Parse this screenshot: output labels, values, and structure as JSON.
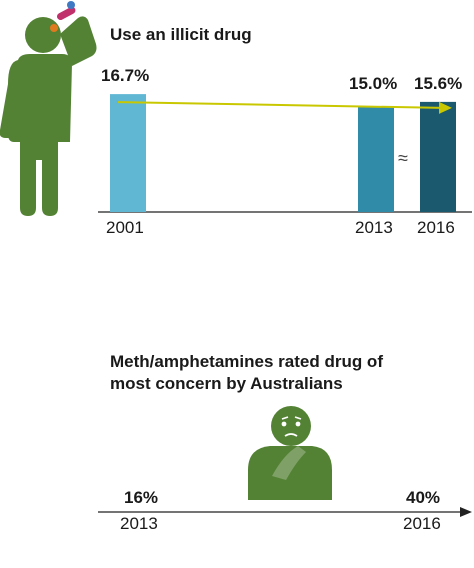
{
  "colors": {
    "figure_green": "#548235",
    "bar_2001": "#5fb7d4",
    "bar_2013": "#2f8ba8",
    "bar_2016": "#1b5a6e",
    "trend_arrow": "#c9c800",
    "pill_red": "#c0306b",
    "pill_blue": "#3f79c4",
    "pill_orange": "#e07a1f"
  },
  "icons": {
    "person_drinking": "person-taking-pill-icon",
    "worried_person": "worried-person-icon",
    "axis_break": "approx-break-icon"
  },
  "chart_data": [
    {
      "type": "bar",
      "title": "Use an illicit drug",
      "categories": [
        "2001",
        "2013",
        "2016"
      ],
      "values": [
        16.7,
        15.0,
        15.6
      ],
      "value_labels": [
        "16.7%",
        "15.0%",
        "15.6%"
      ],
      "xlabel": "",
      "ylabel": "",
      "ylim": [
        0,
        17
      ],
      "axis_break_symbol": "≈",
      "trend_arrow": true,
      "grid": false
    },
    {
      "type": "line",
      "title_lines": [
        "Meth/amphetamines rated drug of",
        "most concern by Australians"
      ],
      "x": [
        "2013",
        "2016"
      ],
      "values": [
        16,
        40
      ],
      "value_labels": [
        "16%",
        "40%"
      ],
      "grid": false
    }
  ]
}
